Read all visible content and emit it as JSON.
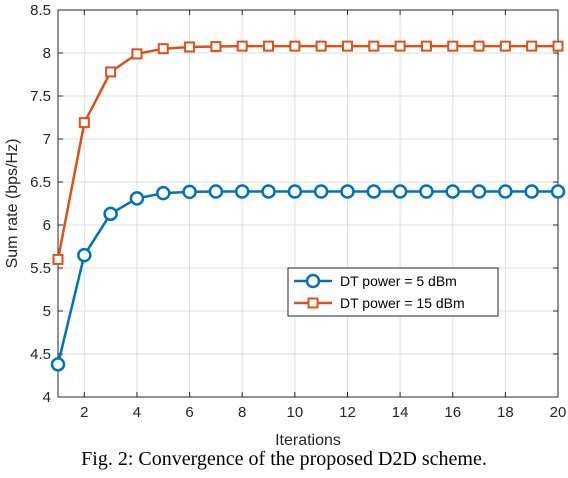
{
  "chart_data": {
    "type": "line",
    "title": "",
    "xlabel": "Iterations",
    "ylabel": "Sum rate (bps/Hz)",
    "xlim": [
      1,
      20
    ],
    "ylim": [
      4,
      8.5
    ],
    "xticks": [
      2,
      4,
      6,
      8,
      10,
      12,
      14,
      16,
      18,
      20
    ],
    "yticks": [
      4,
      4.5,
      5,
      5.5,
      6,
      6.5,
      7,
      7.5,
      8,
      8.5
    ],
    "grid": true,
    "legend_position": "center-right",
    "x": [
      1,
      2,
      3,
      4,
      5,
      6,
      7,
      8,
      9,
      10,
      11,
      12,
      13,
      14,
      15,
      16,
      17,
      18,
      19,
      20
    ],
    "series": [
      {
        "name": "DT power = 5 dBm",
        "color": "#0072BD",
        "marker": "circle",
        "values": [
          4.38,
          5.65,
          6.13,
          6.31,
          6.37,
          6.385,
          6.39,
          6.39,
          6.39,
          6.39,
          6.39,
          6.39,
          6.39,
          6.39,
          6.39,
          6.39,
          6.39,
          6.39,
          6.39,
          6.39
        ]
      },
      {
        "name": "DT power = 15 dBm",
        "color": "#D95319",
        "marker": "square",
        "values": [
          5.6,
          7.19,
          7.78,
          7.99,
          8.05,
          8.07,
          8.075,
          8.08,
          8.08,
          8.08,
          8.08,
          8.08,
          8.08,
          8.08,
          8.08,
          8.08,
          8.08,
          8.08,
          8.08,
          8.08
        ]
      }
    ]
  },
  "caption": "Fig. 2: Convergence of the proposed D2D scheme."
}
